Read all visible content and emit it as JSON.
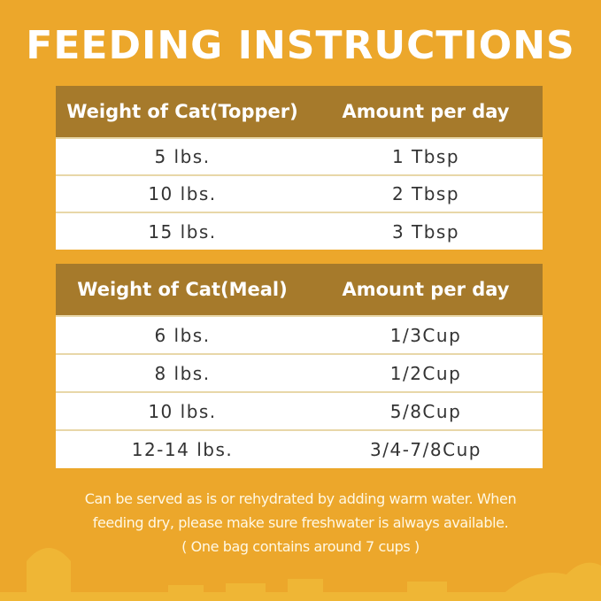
{
  "title": "FEEDING INSTRUCTIONS",
  "topper": {
    "headers": [
      "Weight of Cat(Topper)",
      "Amount per day"
    ],
    "rows": [
      [
        "5 lbs.",
        "1 Tbsp"
      ],
      [
        "10 lbs.",
        "2 Tbsp"
      ],
      [
        "15 lbs.",
        "3 Tbsp"
      ]
    ]
  },
  "meal": {
    "headers": [
      "Weight of Cat(Meal)",
      "Amount per day"
    ],
    "rows": [
      [
        "6 lbs.",
        "1/3Cup"
      ],
      [
        "8 lbs.",
        "1/2Cup"
      ],
      [
        "10 lbs.",
        "5/8Cup"
      ],
      [
        "12-14 lbs.",
        "3/4-7/8Cup"
      ]
    ]
  },
  "note": {
    "line1": "Can be served as is or rehydrated by adding warm water. When",
    "line2": "feeding dry, please make sure freshwater is always available.",
    "line3": "( One bag contains around 7 cups )"
  },
  "colors": {
    "background": "#eca72b",
    "header": "#a67a2b"
  }
}
